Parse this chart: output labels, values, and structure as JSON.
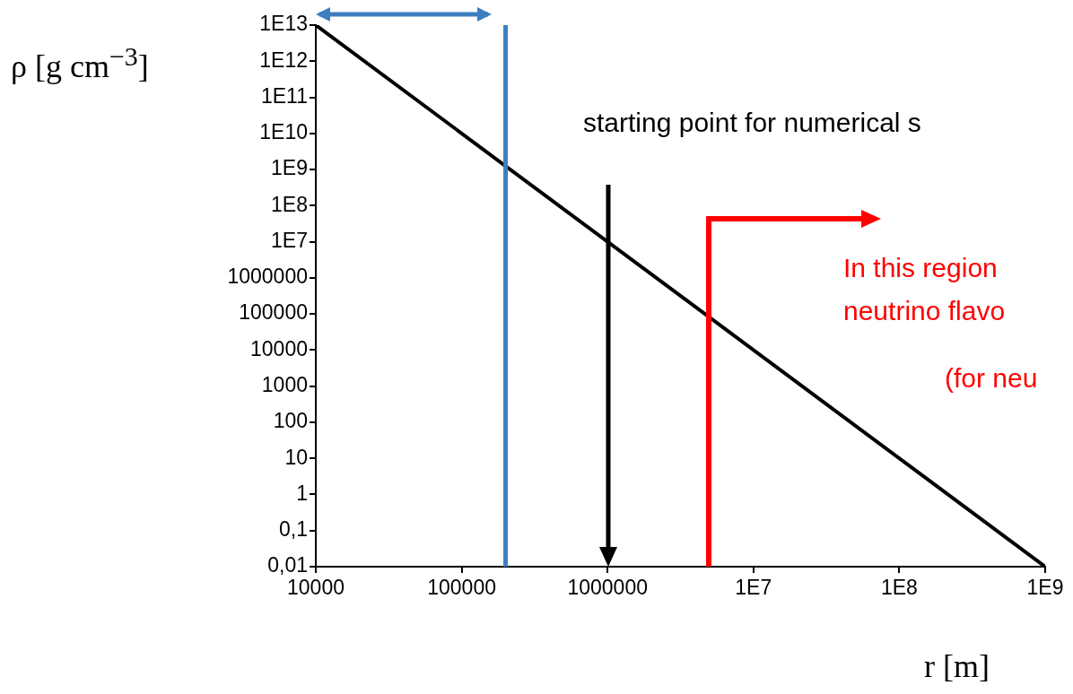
{
  "chart_data": {
    "type": "line",
    "xlabel": "r [m]",
    "ylabel": "ρ [g cm$^{−3}$]",
    "x": [
      10000,
      1000000000
    ],
    "series": [
      {
        "color": "#000000",
        "values": [
          10000000000000,
          0.01
        ]
      }
    ],
    "log": "xy",
    "grid": false,
    "legend": false,
    "marker": "none",
    "line_style": "solid",
    "xlim": [
      10000,
      1000000000
    ],
    "xticks": [
      10000,
      100000,
      1000000,
      {
        "value": 10000000,
        "label": "1E7"
      },
      {
        "value": 100000000,
        "label": "1E8"
      },
      {
        "value": 1000000000,
        "label": "1E9"
      }
    ],
    "ylim": [
      0.01,
      10000000000000
    ],
    "yticks": [
      {
        "value": 0.01,
        "label": "0,01"
      },
      {
        "value": 0.1,
        "label": "0,1"
      },
      1,
      10,
      100,
      1000,
      10000,
      100000,
      1000000,
      {
        "value": 10000000,
        "label": "1E7"
      },
      {
        "value": 100000000,
        "label": "1E8"
      },
      {
        "value": 1000000000,
        "label": "1E9"
      },
      {
        "value": 10000000000,
        "label": "1E10"
      },
      {
        "value": 100000000000,
        "label": "1E11"
      },
      {
        "value": 1000000000000,
        "label": "1E12"
      },
      {
        "value": 10000000000000,
        "label": "1E13"
      }
    ],
    "ref_lines": [
      {
        "axis": "x",
        "value": 200000,
        "color": "#3c7fc0"
      }
    ],
    "annotations": [
      "starting point for numerical s",
      "In this region",
      "neutrino flavo",
      "(for neu"
    ]
  }
}
